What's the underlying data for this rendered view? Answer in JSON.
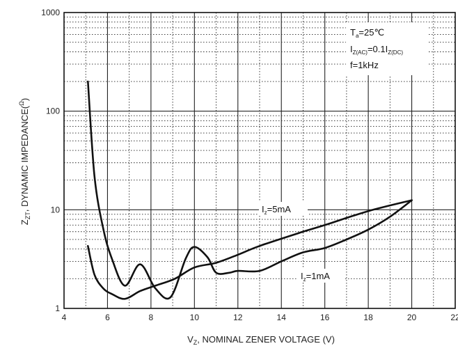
{
  "chart_data": {
    "type": "line",
    "x_scale": "linear",
    "y_scale": "log",
    "xlim": [
      4,
      22
    ],
    "ylim": [
      1,
      1000
    ],
    "x_ticks": [
      4,
      6,
      8,
      10,
      12,
      14,
      16,
      18,
      20,
      22
    ],
    "y_ticks": [
      {
        "value": 1,
        "label": "1"
      },
      {
        "value": 10,
        "label": "10"
      },
      {
        "value": 100,
        "label": "100"
      },
      {
        "value": 1000,
        "label": "1000"
      }
    ],
    "xlabel": {
      "main": "V",
      "sub": "Z",
      "rest": ", NOMINAL ZENER VOLTAGE (V)"
    },
    "ylabel": {
      "main": "Z",
      "sub": "ZT",
      "rest": ", DYNAMIC IMPEDANCE(",
      "sup": "Ω",
      "end": ")"
    },
    "grid": "dotted",
    "conditions": [
      {
        "main": "T",
        "sub": "a",
        "rest": "=25℃"
      },
      {
        "main": "I",
        "sub": "Z(AC)",
        "rest": "=0.1I",
        "sub2": "Z(DC)"
      },
      {
        "main": "f=1kHz"
      }
    ],
    "series": [
      {
        "name": {
          "main": "I",
          "sub": "z",
          "rest": "=5mA"
        },
        "x": [
          5.1,
          5.4,
          5.8,
          6.2,
          6.8,
          7.5,
          8.2,
          9.1,
          10.0,
          11.0,
          12.0,
          13.0,
          15.0,
          16.0,
          18.0,
          20.0
        ],
        "y": [
          4.3,
          2.2,
          1.6,
          1.4,
          1.25,
          1.5,
          1.7,
          2.0,
          2.6,
          2.9,
          3.5,
          4.3,
          6.0,
          7.0,
          9.7,
          12.5
        ]
      },
      {
        "name": {
          "main": "I",
          "sub": "z",
          "rest": "=1mA"
        },
        "x": [
          5.1,
          5.4,
          5.8,
          6.2,
          6.8,
          7.5,
          8.2,
          8.9,
          9.6,
          10.0,
          10.6,
          11.0,
          11.6,
          12.0,
          13.0,
          14.0,
          15.0,
          16.0,
          17.0,
          18.0,
          19.0,
          20.0
        ],
        "y": [
          200,
          22,
          6.5,
          3.2,
          1.7,
          2.8,
          1.6,
          1.3,
          3.2,
          4.2,
          3.3,
          2.3,
          2.3,
          2.4,
          2.4,
          3.0,
          3.7,
          4.1,
          5.0,
          6.3,
          8.5,
          12.5
        ]
      }
    ]
  }
}
